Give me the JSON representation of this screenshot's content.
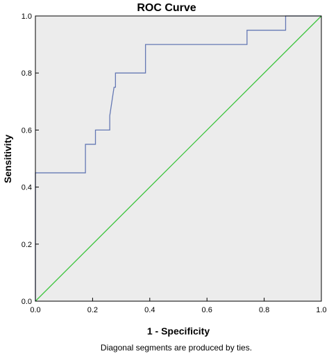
{
  "chart_data": {
    "type": "line",
    "title": "ROC Curve",
    "xlabel": "1 - Specificity",
    "ylabel": "Sensitivity",
    "footnote": "Diagonal segments are produced by ties.",
    "xlim": [
      0,
      1
    ],
    "ylim": [
      0,
      1
    ],
    "x_ticks": [
      "0.0",
      "0.2",
      "0.4",
      "0.6",
      "0.8",
      "1.0"
    ],
    "y_ticks": [
      "0.0",
      "0.2",
      "0.4",
      "0.6",
      "0.8",
      "1.0"
    ],
    "x_tick_values": [
      0,
      0.2,
      0.4,
      0.6,
      0.8,
      1.0
    ],
    "y_tick_values": [
      0,
      0.2,
      0.4,
      0.6,
      0.8,
      1.0
    ],
    "grid": false,
    "background": "#ececec",
    "series": [
      {
        "color": "#6478b4",
        "x": [
          0,
          0,
          0.175,
          0.175,
          0.21,
          0.21,
          0.26,
          0.26,
          0.275,
          0.28,
          0.28,
          0.385,
          0.385,
          0.74,
          0.74,
          0.875,
          0.875,
          1.0
        ],
        "y": [
          0,
          0.45,
          0.45,
          0.55,
          0.55,
          0.6,
          0.6,
          0.65,
          0.75,
          0.75,
          0.8,
          0.8,
          0.9,
          0.9,
          0.95,
          0.95,
          1.0,
          1.0
        ]
      },
      {
        "color": "#3cc43c",
        "x": [
          0,
          1
        ],
        "y": [
          0,
          1
        ]
      }
    ]
  }
}
